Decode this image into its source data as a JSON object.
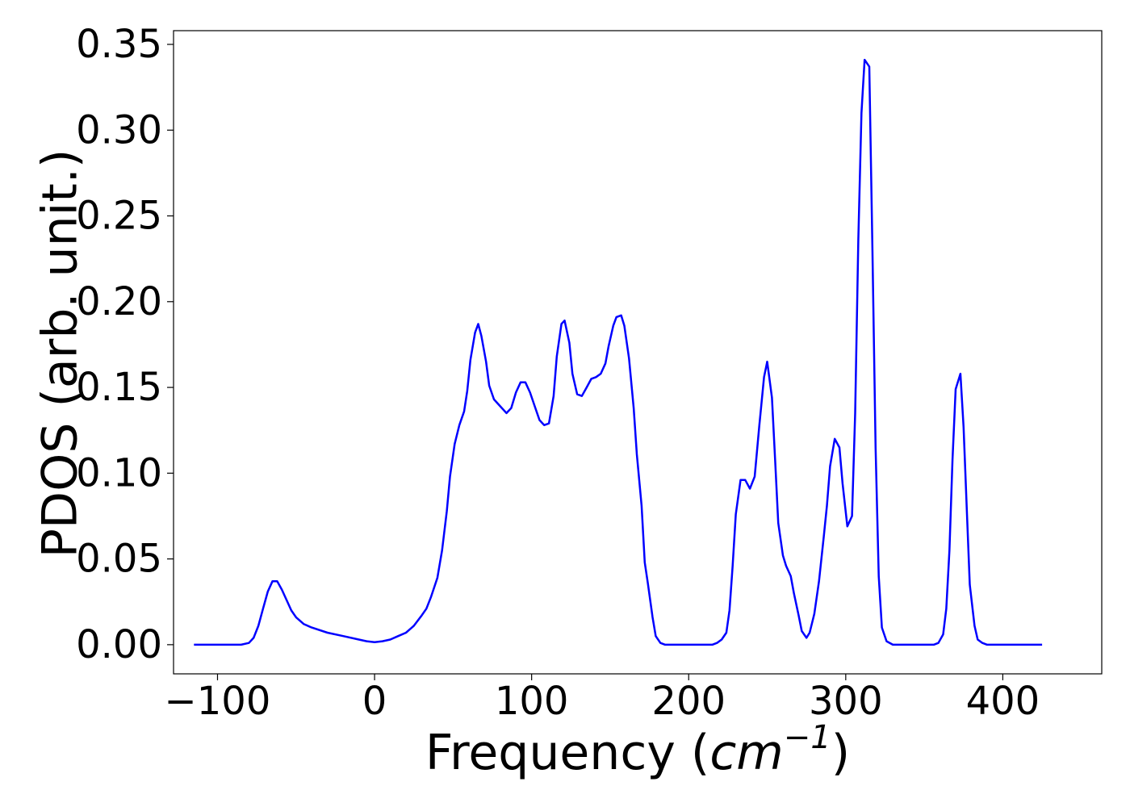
{
  "chart_data": {
    "type": "line",
    "title": "",
    "xlabel": {
      "main": "Frequency (",
      "unit_var": "cm",
      "unit_exp": "−1",
      "close": ")"
    },
    "ylabel": "PDOS (arb. unit.)",
    "xlim": [
      -128,
      463
    ],
    "ylim": [
      -0.017,
      0.358
    ],
    "x_ticks": [
      -100,
      0,
      100,
      200,
      300,
      400
    ],
    "x_tick_labels": [
      "−100",
      "0",
      "100",
      "200",
      "300",
      "400"
    ],
    "y_ticks": [
      0.0,
      0.05,
      0.1,
      0.15,
      0.2,
      0.25,
      0.3,
      0.35
    ],
    "y_tick_labels": [
      "0.00",
      "0.05",
      "0.10",
      "0.15",
      "0.20",
      "0.25",
      "0.30",
      "0.35"
    ],
    "grid": false,
    "colors": {
      "line": "#0000ff",
      "axes": "#000000",
      "background": "#ffffff"
    },
    "series": [
      {
        "points": [
          [
            -115,
            0.0
          ],
          [
            -100,
            0.0
          ],
          [
            -85,
            0.0
          ],
          [
            -80,
            0.001
          ],
          [
            -77,
            0.004
          ],
          [
            -74,
            0.011
          ],
          [
            -71,
            0.021
          ],
          [
            -68,
            0.031
          ],
          [
            -65,
            0.037
          ],
          [
            -62,
            0.037
          ],
          [
            -59,
            0.032
          ],
          [
            -56,
            0.026
          ],
          [
            -53,
            0.02
          ],
          [
            -50,
            0.016
          ],
          [
            -45,
            0.012
          ],
          [
            -40,
            0.01
          ],
          [
            -30,
            0.007
          ],
          [
            -20,
            0.005
          ],
          [
            -10,
            0.003
          ],
          [
            -5,
            0.002
          ],
          [
            0,
            0.0015
          ],
          [
            5,
            0.002
          ],
          [
            10,
            0.003
          ],
          [
            15,
            0.005
          ],
          [
            20,
            0.007
          ],
          [
            25,
            0.011
          ],
          [
            30,
            0.017
          ],
          [
            33,
            0.021
          ],
          [
            36,
            0.028
          ],
          [
            40,
            0.039
          ],
          [
            43,
            0.055
          ],
          [
            46,
            0.078
          ],
          [
            48,
            0.098
          ],
          [
            51,
            0.117
          ],
          [
            54,
            0.128
          ],
          [
            57,
            0.136
          ],
          [
            59,
            0.148
          ],
          [
            61,
            0.166
          ],
          [
            64,
            0.182
          ],
          [
            66,
            0.187
          ],
          [
            68,
            0.18
          ],
          [
            71,
            0.165
          ],
          [
            73,
            0.151
          ],
          [
            76,
            0.143
          ],
          [
            80,
            0.139
          ],
          [
            84,
            0.135
          ],
          [
            87,
            0.138
          ],
          [
            90,
            0.147
          ],
          [
            93,
            0.153
          ],
          [
            96,
            0.153
          ],
          [
            99,
            0.147
          ],
          [
            102,
            0.139
          ],
          [
            105,
            0.131
          ],
          [
            108,
            0.128
          ],
          [
            111,
            0.129
          ],
          [
            114,
            0.145
          ],
          [
            116,
            0.168
          ],
          [
            119,
            0.187
          ],
          [
            121,
            0.189
          ],
          [
            124,
            0.176
          ],
          [
            126,
            0.158
          ],
          [
            129,
            0.146
          ],
          [
            132,
            0.145
          ],
          [
            135,
            0.15
          ],
          [
            138,
            0.155
          ],
          [
            141,
            0.156
          ],
          [
            144,
            0.158
          ],
          [
            147,
            0.164
          ],
          [
            149,
            0.174
          ],
          [
            152,
            0.186
          ],
          [
            154,
            0.191
          ],
          [
            157,
            0.192
          ],
          [
            159,
            0.186
          ],
          [
            162,
            0.167
          ],
          [
            165,
            0.138
          ],
          [
            167,
            0.111
          ],
          [
            170,
            0.081
          ],
          [
            172,
            0.048
          ],
          [
            174,
            0.036
          ],
          [
            177,
            0.016
          ],
          [
            179,
            0.005
          ],
          [
            182,
            0.001
          ],
          [
            185,
            0.0
          ],
          [
            195,
            0.0
          ],
          [
            205,
            0.0
          ],
          [
            215,
            0.0
          ],
          [
            218,
            0.001
          ],
          [
            221,
            0.003
          ],
          [
            224,
            0.007
          ],
          [
            226,
            0.02
          ],
          [
            228,
            0.046
          ],
          [
            230,
            0.076
          ],
          [
            233,
            0.096
          ],
          [
            236,
            0.096
          ],
          [
            239,
            0.091
          ],
          [
            242,
            0.098
          ],
          [
            245,
            0.128
          ],
          [
            248,
            0.156
          ],
          [
            250,
            0.165
          ],
          [
            253,
            0.144
          ],
          [
            255,
            0.108
          ],
          [
            257,
            0.071
          ],
          [
            260,
            0.052
          ],
          [
            262,
            0.046
          ],
          [
            265,
            0.04
          ],
          [
            267,
            0.03
          ],
          [
            270,
            0.017
          ],
          [
            272,
            0.008
          ],
          [
            275,
            0.004
          ],
          [
            277,
            0.007
          ],
          [
            280,
            0.018
          ],
          [
            283,
            0.037
          ],
          [
            286,
            0.063
          ],
          [
            288,
            0.081
          ],
          [
            290,
            0.104
          ],
          [
            293,
            0.12
          ],
          [
            296,
            0.115
          ],
          [
            298,
            0.094
          ],
          [
            301,
            0.069
          ],
          [
            304,
            0.075
          ],
          [
            306,
            0.135
          ],
          [
            308,
            0.236
          ],
          [
            310,
            0.31
          ],
          [
            312,
            0.341
          ],
          [
            315,
            0.337
          ],
          [
            317,
            0.23
          ],
          [
            319,
            0.115
          ],
          [
            321,
            0.04
          ],
          [
            323,
            0.01
          ],
          [
            326,
            0.002
          ],
          [
            330,
            0.0
          ],
          [
            340,
            0.0
          ],
          [
            350,
            0.0
          ],
          [
            356,
            0.0
          ],
          [
            359,
            0.001
          ],
          [
            362,
            0.006
          ],
          [
            364,
            0.021
          ],
          [
            366,
            0.055
          ],
          [
            368,
            0.108
          ],
          [
            370,
            0.149
          ],
          [
            373,
            0.158
          ],
          [
            375,
            0.127
          ],
          [
            377,
            0.08
          ],
          [
            379,
            0.035
          ],
          [
            382,
            0.011
          ],
          [
            384,
            0.003
          ],
          [
            387,
            0.001
          ],
          [
            390,
            0.0
          ],
          [
            400,
            0.0
          ],
          [
            410,
            0.0
          ],
          [
            425,
            0.0
          ]
        ]
      }
    ]
  }
}
